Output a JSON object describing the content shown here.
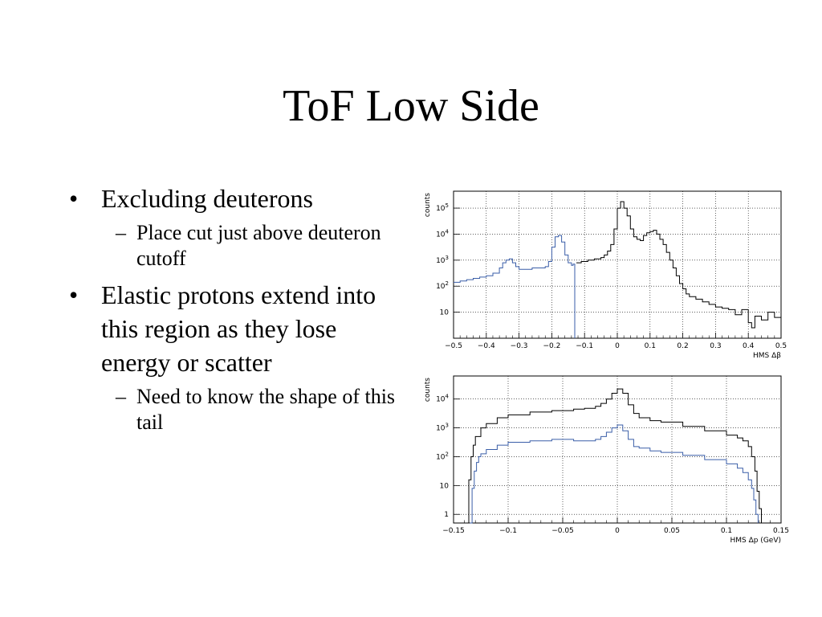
{
  "slide": {
    "title": "ToF Low Side",
    "bullets": [
      {
        "text": "Excluding deuterons",
        "sub": [
          "Place cut just above deuteron cutoff"
        ]
      },
      {
        "text": "Elastic protons extend into this region as they lose energy or scatter",
        "sub": [
          "Need to know the shape of this tail"
        ]
      }
    ]
  },
  "chart_data": [
    {
      "type": "line",
      "xlabel": "HMS Δβ",
      "ylabel": "counts",
      "xlim": [
        -0.5,
        0.5
      ],
      "ylim_log10": [
        0.0,
        5.65
      ],
      "yscale": "log",
      "grid": true,
      "xticks": [
        "−0.5",
        "−0.4",
        "−0.3",
        "−0.2",
        "−0.1",
        "0",
        "0.1",
        "0.2",
        "0.3",
        "0.4",
        "0.5"
      ],
      "yticks": [
        {
          "exp": 1,
          "label": "10"
        },
        {
          "exp": 2,
          "label": "10",
          "sup": "2"
        },
        {
          "exp": 3,
          "label": "10",
          "sup": "3"
        },
        {
          "exp": 4,
          "label": "10",
          "sup": "4"
        },
        {
          "exp": 5,
          "label": "10",
          "sup": "5"
        }
      ],
      "series": [
        {
          "color": "#000000",
          "x": [
            -0.125,
            -0.11,
            -0.09,
            -0.07,
            -0.05,
            -0.04,
            -0.03,
            -0.02,
            -0.01,
            0.0,
            0.01,
            0.02,
            0.03,
            0.04,
            0.05,
            0.06,
            0.07,
            0.08,
            0.09,
            0.1,
            0.11,
            0.12,
            0.13,
            0.14,
            0.15,
            0.16,
            0.17,
            0.18,
            0.19,
            0.2,
            0.21,
            0.22,
            0.24,
            0.26,
            0.28,
            0.3,
            0.32,
            0.34,
            0.36,
            0.38,
            0.4,
            0.41,
            0.42,
            0.44,
            0.46,
            0.48,
            0.5
          ],
          "log10": [
            2.9,
            2.95,
            3.0,
            3.05,
            3.1,
            3.2,
            3.35,
            3.6,
            4.2,
            5.0,
            5.25,
            5.0,
            4.7,
            4.2,
            3.9,
            3.8,
            3.75,
            3.95,
            4.05,
            4.1,
            4.15,
            4.0,
            3.8,
            3.6,
            3.3,
            3.0,
            2.7,
            2.4,
            2.1,
            1.9,
            1.7,
            1.6,
            1.5,
            1.4,
            1.3,
            1.2,
            1.15,
            1.1,
            0.9,
            1.1,
            0.6,
            0.4,
            0.85,
            0.7,
            1.0,
            0.8,
            0.95
          ]
        },
        {
          "color": "#3a5ea8",
          "x": [
            -0.5,
            -0.48,
            -0.46,
            -0.44,
            -0.42,
            -0.4,
            -0.38,
            -0.36,
            -0.35,
            -0.34,
            -0.33,
            -0.32,
            -0.31,
            -0.3,
            -0.28,
            -0.26,
            -0.24,
            -0.22,
            -0.21,
            -0.2,
            -0.19,
            -0.18,
            -0.17,
            -0.16,
            -0.15,
            -0.14,
            -0.135,
            -0.13
          ],
          "log10": [
            2.15,
            2.2,
            2.25,
            2.3,
            2.35,
            2.4,
            2.5,
            2.7,
            2.9,
            3.0,
            3.05,
            2.9,
            2.75,
            2.65,
            2.65,
            2.7,
            2.7,
            2.75,
            2.95,
            3.5,
            3.9,
            3.95,
            3.7,
            3.2,
            2.9,
            2.8,
            2.85,
            0.0
          ]
        }
      ]
    },
    {
      "type": "line",
      "xlabel": "HMS Δp (GeV)",
      "ylabel": "counts",
      "xlim": [
        -0.15,
        0.15
      ],
      "ylim_log10": [
        -0.3,
        4.8
      ],
      "yscale": "log",
      "grid": true,
      "xticks": [
        "−0.15",
        "−0.1",
        "−0.05",
        "0",
        "0.05",
        "0.1",
        "0.15"
      ],
      "yticks": [
        {
          "exp": 0,
          "label": "1"
        },
        {
          "exp": 1,
          "label": "10"
        },
        {
          "exp": 2,
          "label": "10",
          "sup": "2"
        },
        {
          "exp": 3,
          "label": "10",
          "sup": "3"
        },
        {
          "exp": 4,
          "label": "10",
          "sup": "4"
        }
      ],
      "series": [
        {
          "color": "#000000",
          "x": [
            -0.138,
            -0.136,
            -0.134,
            -0.132,
            -0.13,
            -0.125,
            -0.12,
            -0.11,
            -0.1,
            -0.08,
            -0.06,
            -0.04,
            -0.03,
            -0.02,
            -0.015,
            -0.01,
            -0.005,
            0.0,
            0.005,
            0.01,
            0.015,
            0.02,
            0.03,
            0.04,
            0.06,
            0.08,
            0.1,
            0.11,
            0.115,
            0.12,
            0.123,
            0.126,
            0.128,
            0.13,
            0.132
          ],
          "log10": [
            -0.3,
            1.2,
            2.0,
            2.4,
            2.7,
            3.0,
            3.15,
            3.35,
            3.45,
            3.55,
            3.6,
            3.65,
            3.68,
            3.75,
            3.85,
            4.0,
            4.2,
            4.35,
            4.2,
            3.8,
            3.5,
            3.35,
            3.25,
            3.2,
            3.05,
            2.9,
            2.75,
            2.65,
            2.55,
            2.35,
            2.0,
            1.5,
            0.8,
            0.2,
            -0.3
          ]
        },
        {
          "color": "#3a5ea8",
          "x": [
            -0.135,
            -0.133,
            -0.131,
            -0.129,
            -0.127,
            -0.125,
            -0.12,
            -0.11,
            -0.1,
            -0.08,
            -0.06,
            -0.04,
            -0.03,
            -0.02,
            -0.015,
            -0.01,
            -0.005,
            0.0,
            0.005,
            0.01,
            0.015,
            0.02,
            0.03,
            0.04,
            0.06,
            0.08,
            0.1,
            0.11,
            0.115,
            0.12,
            0.123,
            0.125,
            0.127,
            0.129
          ],
          "log10": [
            -0.3,
            0.9,
            1.5,
            1.8,
            2.0,
            2.1,
            2.25,
            2.4,
            2.5,
            2.55,
            2.6,
            2.55,
            2.55,
            2.6,
            2.7,
            2.85,
            3.0,
            3.1,
            2.9,
            2.6,
            2.35,
            2.3,
            2.2,
            2.15,
            2.05,
            1.9,
            1.75,
            1.6,
            1.45,
            1.2,
            0.9,
            0.5,
            0.0,
            -0.3
          ]
        }
      ]
    }
  ]
}
